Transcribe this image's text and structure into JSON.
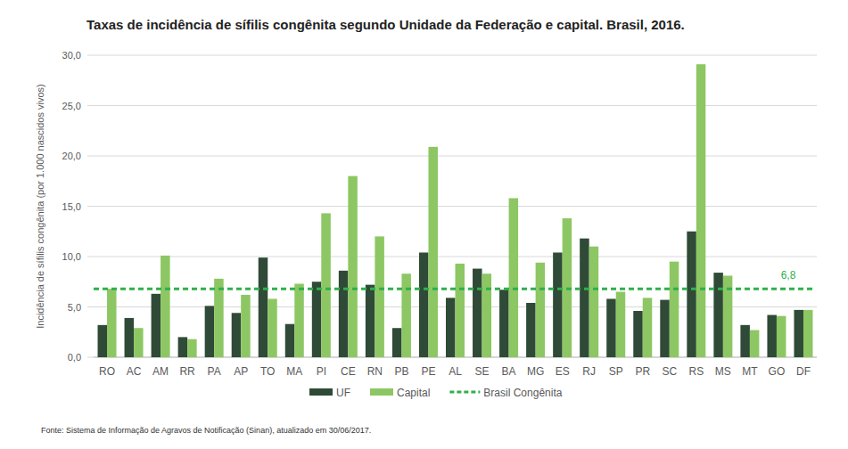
{
  "chart_data": {
    "type": "bar",
    "title": "Taxas de incidência de sífilis congênita segundo Unidade da Federação e capital. Brasil, 2016.",
    "y_label": "Incidência de sífilis congênita (por 1.000 nascidos vivos)",
    "source": "Fonte: Sistema de Informação de Agravos de Notificação (Sinan), atualizado em 30/06/2017.",
    "categories": [
      "RO",
      "AC",
      "AM",
      "RR",
      "PA",
      "AP",
      "TO",
      "MA",
      "PI",
      "CE",
      "RN",
      "PB",
      "PE",
      "AL",
      "SE",
      "BA",
      "MG",
      "ES",
      "RJ",
      "SP",
      "PR",
      "SC",
      "RS",
      "MS",
      "MT",
      "GO",
      "DF"
    ],
    "series": [
      {
        "name": "UF",
        "color": "#2f4a36",
        "values": [
          3.2,
          3.9,
          6.3,
          2.0,
          5.1,
          4.4,
          9.9,
          3.3,
          7.5,
          8.6,
          7.2,
          2.9,
          10.4,
          5.9,
          8.8,
          6.7,
          5.4,
          10.4,
          11.8,
          5.8,
          4.6,
          5.7,
          12.5,
          8.4,
          3.2,
          4.2,
          4.7
        ]
      },
      {
        "name": "Capital",
        "color": "#8dc764",
        "values": [
          6.8,
          2.9,
          10.1,
          1.8,
          7.8,
          6.2,
          5.8,
          7.3,
          14.3,
          18.0,
          12.0,
          8.3,
          20.9,
          9.3,
          8.3,
          15.8,
          9.4,
          13.8,
          11.0,
          6.5,
          5.9,
          9.5,
          29.1,
          8.1,
          2.7,
          4.1,
          4.7
        ]
      }
    ],
    "reference_lines": [
      {
        "name": "Brasil Congênita",
        "value": 6.8,
        "label": "6,8",
        "color": "#2fb04a",
        "line_style": "dashed"
      }
    ],
    "ylim": [
      0,
      30
    ],
    "yticks": [
      {
        "value": 0,
        "label": "0,0"
      },
      {
        "value": 5,
        "label": "5,0"
      },
      {
        "value": 10,
        "label": "10,0"
      },
      {
        "value": 15,
        "label": "15,0"
      },
      {
        "value": 20,
        "label": "20,0"
      },
      {
        "value": 25,
        "label": "25,0"
      },
      {
        "value": 30,
        "label": "30,0"
      }
    ],
    "grid": true,
    "legend": "bottom"
  }
}
